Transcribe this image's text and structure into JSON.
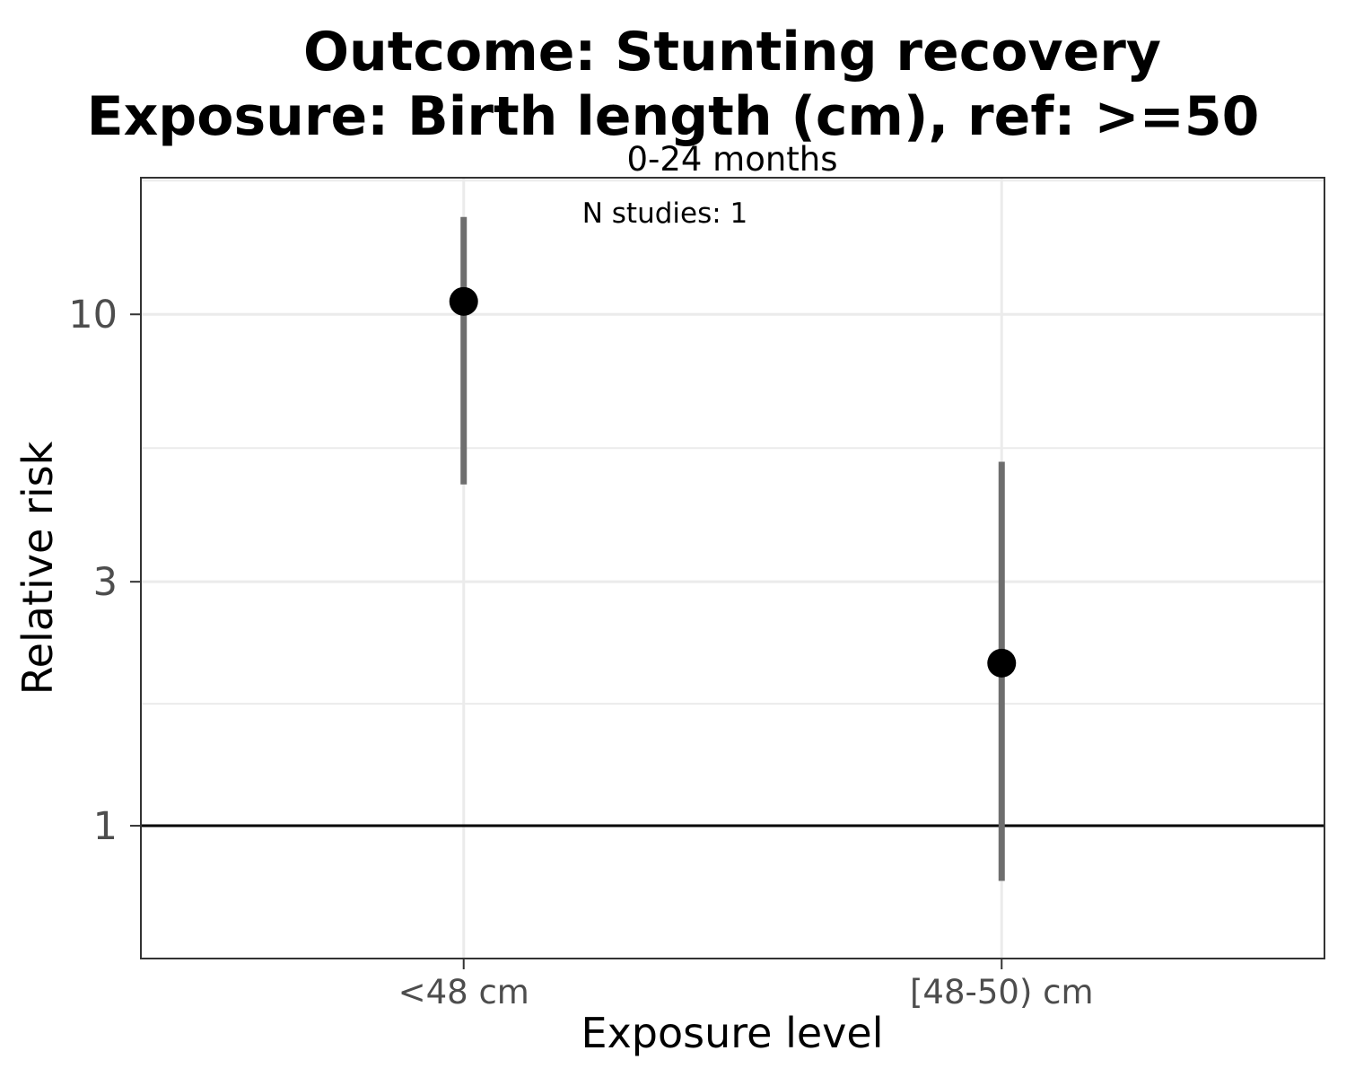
{
  "chart_data": {
    "type": "scatter",
    "title_line1": "Outcome: Stunting recovery",
    "title_line2": "Exposure: Birth length (cm), ref: >=50",
    "facet_label": "0-24 months",
    "annotation": "N studies: 1",
    "xlabel": "Exposure level",
    "ylabel": "Relative risk",
    "y_scale": "log",
    "ylim": [
      0.55,
      18.5
    ],
    "y_ticks": [
      1,
      3,
      10
    ],
    "y_tick_labels": [
      "1",
      "3",
      "10"
    ],
    "reference_line": 1,
    "grid": true,
    "categories": [
      "<48 cm",
      "[48-50) cm"
    ],
    "points": [
      {
        "category": "<48 cm",
        "estimate": 10.6,
        "ci_lower": 4.65,
        "ci_upper": 15.5
      },
      {
        "category": "[48-50) cm",
        "estimate": 2.08,
        "ci_lower": 0.78,
        "ci_upper": 5.15
      }
    ],
    "colors": {
      "point": "#000000",
      "ci": "#6e6e6e",
      "grid": "#ebebeb",
      "panel_border": "#333333",
      "reference": "#000000"
    }
  }
}
